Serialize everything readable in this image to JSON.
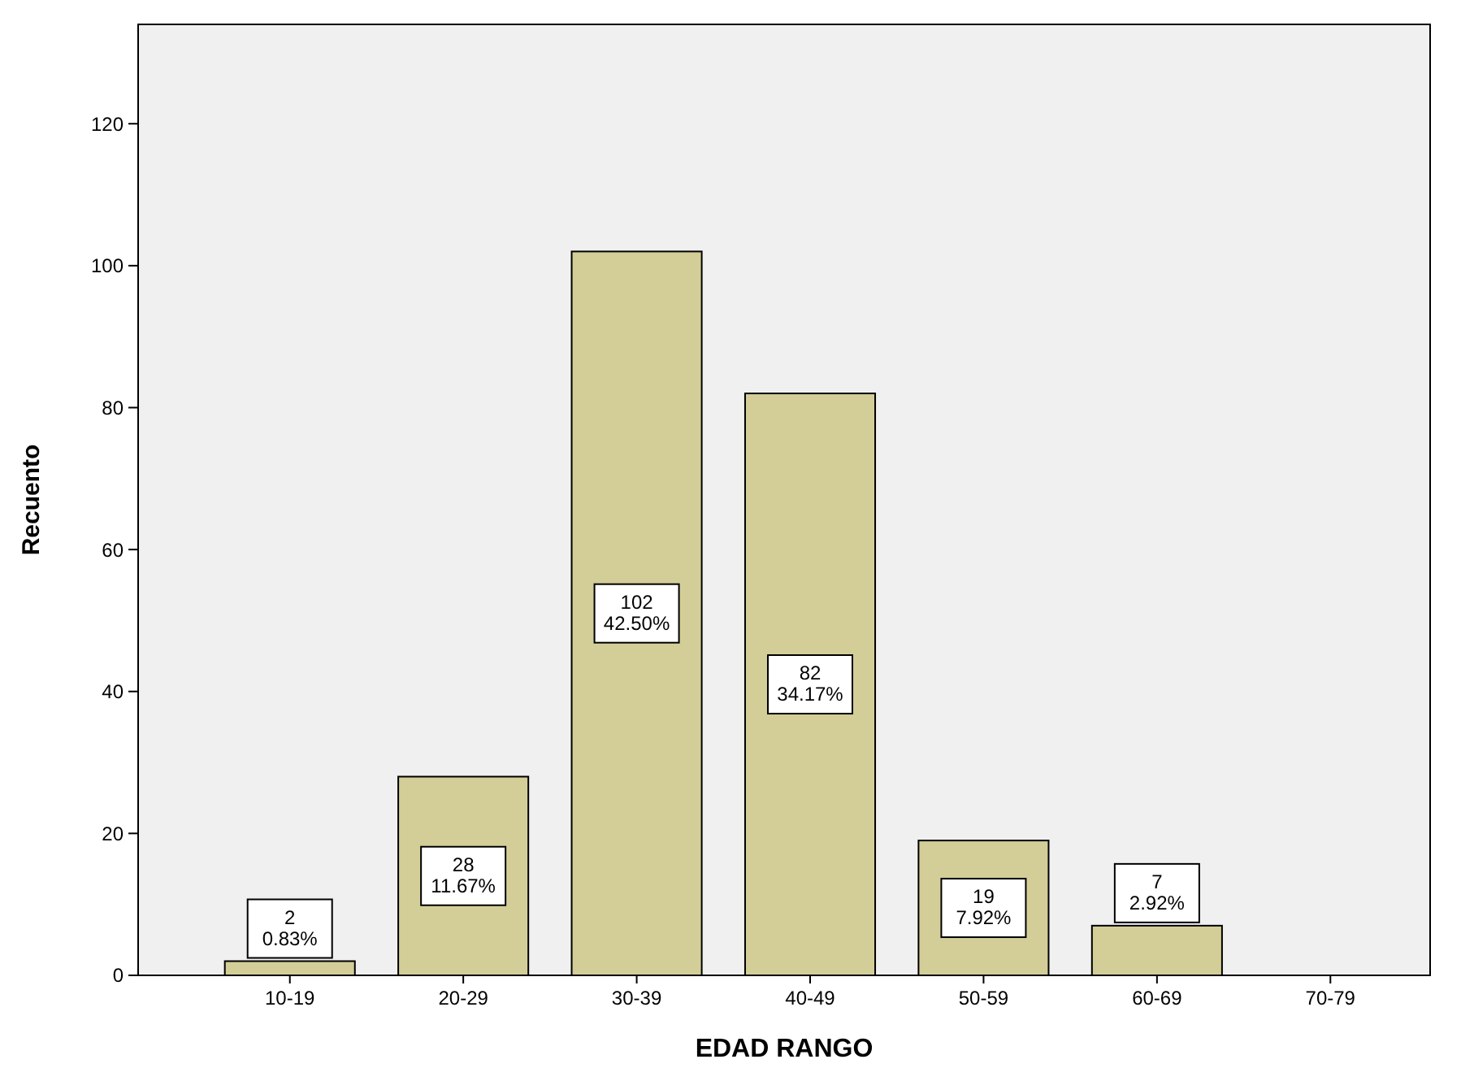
{
  "chart_data": {
    "type": "bar",
    "xlabel": "EDAD RANGO",
    "ylabel": "Recuento",
    "categories": [
      "10-19",
      "20-29",
      "30-39",
      "40-49",
      "50-59",
      "60-69",
      "70-79"
    ],
    "values": [
      2,
      28,
      102,
      82,
      19,
      7,
      0
    ],
    "value_labels": [
      "2\n0.83%",
      "28\n11.67%",
      "102\n42.50%",
      "82\n34.17%",
      "19\n7.92%",
      "7\n2.92%",
      null
    ],
    "color": "#d3ce98",
    "ylim": [
      0,
      134
    ],
    "yticks": [
      0,
      20,
      40,
      60,
      80,
      100,
      120
    ],
    "grid": false
  }
}
